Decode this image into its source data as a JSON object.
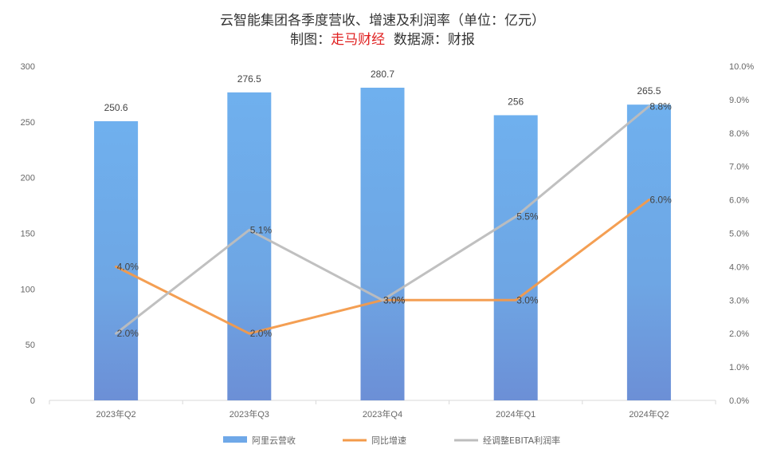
{
  "chart_data": {
    "type": "bar",
    "title": "云智能集团各季度营收、增速及利润率（单位：亿元）",
    "subtitle": {
      "prefix": "制图：",
      "author": "走马财经",
      "suffix": "  数据源：财报"
    },
    "categories": [
      "2023年Q2",
      "2023年Q3",
      "2023年Q4",
      "2024年Q1",
      "2024年Q2"
    ],
    "series": [
      {
        "name": "阿里云营收",
        "kind": "bar",
        "axis": "left",
        "values": [
          250.6,
          276.5,
          280.7,
          256,
          265.5
        ],
        "labels": [
          "250.6",
          "276.5",
          "280.7",
          "256",
          "265.5"
        ],
        "color": "#6FA8E8"
      },
      {
        "name": "同比增速",
        "kind": "line",
        "axis": "right",
        "values": [
          4.0,
          2.0,
          3.0,
          3.0,
          6.0
        ],
        "labels": [
          "4.0%",
          "2.0%",
          "3.0%",
          "3.0%",
          "6.0%"
        ],
        "color": "#F39A4A"
      },
      {
        "name": "经调整EBITA利润率",
        "kind": "line",
        "axis": "right",
        "values": [
          2.0,
          5.1,
          3.0,
          5.5,
          8.8
        ],
        "labels": [
          "2.0%",
          "5.1%",
          "3.0%",
          "5.5%",
          "8.8%"
        ],
        "color": "#BDBDBD"
      }
    ],
    "yleft": {
      "ylim": [
        0,
        300
      ],
      "ticks": [
        0,
        50,
        100,
        150,
        200,
        250,
        300
      ],
      "tick_labels": [
        "0",
        "50",
        "100",
        "150",
        "200",
        "250",
        "300"
      ]
    },
    "yright": {
      "ylim": [
        0,
        10
      ],
      "ticks": [
        0,
        1,
        2,
        3,
        4,
        5,
        6,
        7,
        8,
        9,
        10
      ],
      "tick_labels": [
        "0.0%",
        "1.0%",
        "2.0%",
        "3.0%",
        "4.0%",
        "5.0%",
        "6.0%",
        "7.0%",
        "8.0%",
        "9.0%",
        "10.0%"
      ]
    },
    "grid": false,
    "legend": "bottom",
    "title_colors": {
      "main": "#333333",
      "author": "#E02020"
    }
  }
}
